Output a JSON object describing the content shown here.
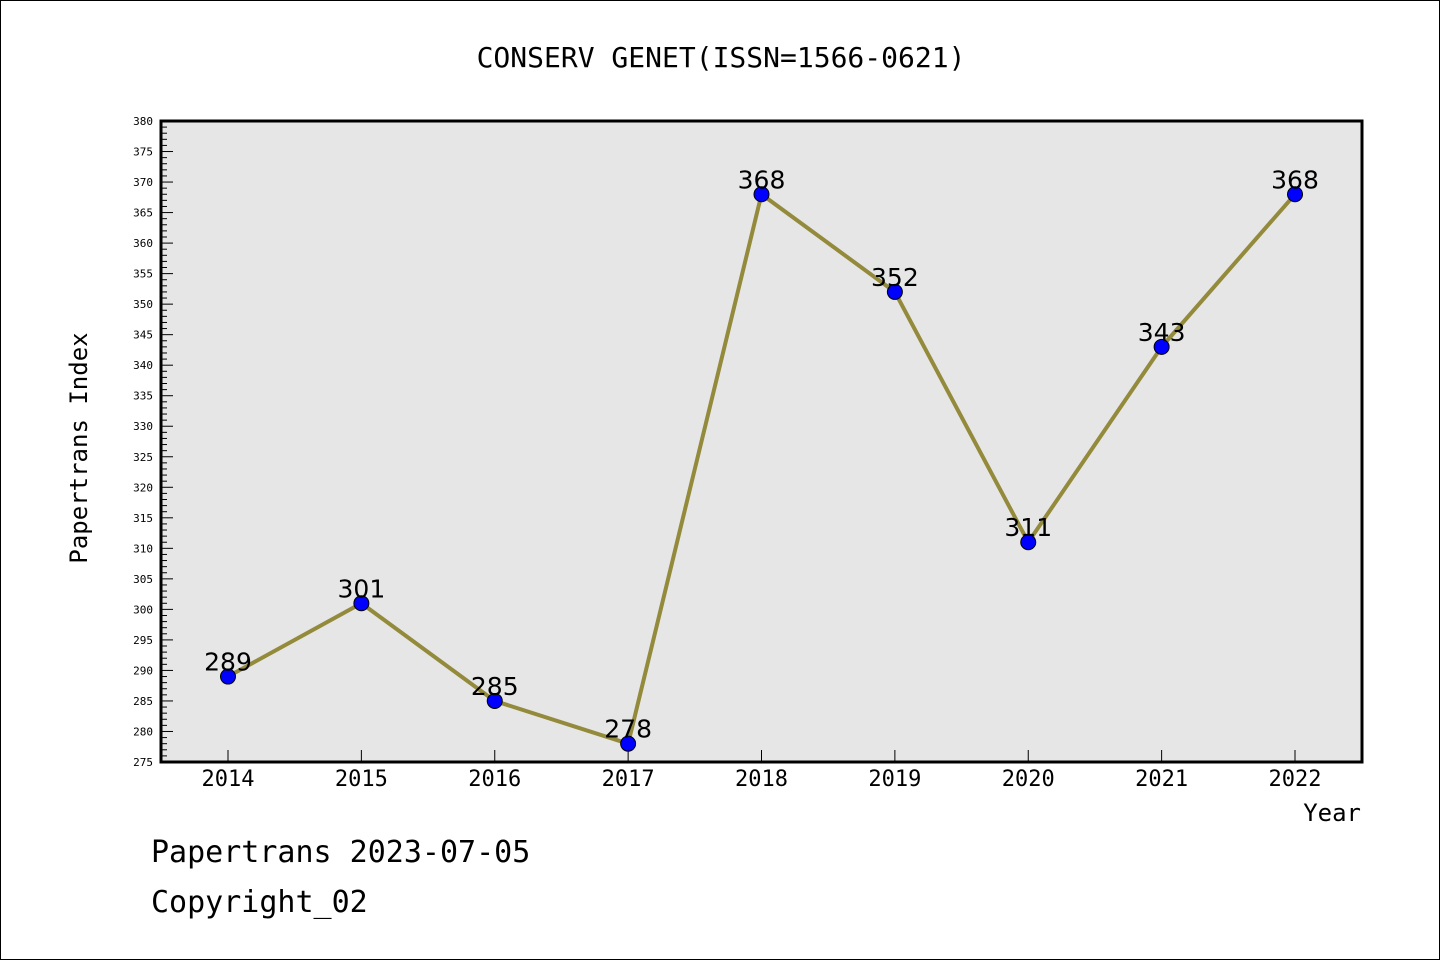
{
  "chart_data": {
    "type": "line",
    "title": "CONSERV GENET(ISSN=1566-0621)",
    "xlabel": "Year",
    "ylabel": "Papertrans Index",
    "categories": [
      "2014",
      "2015",
      "2016",
      "2017",
      "2018",
      "2019",
      "2020",
      "2021",
      "2022"
    ],
    "series": [
      {
        "values": [
          289,
          301,
          285,
          278,
          368,
          352,
          311,
          343,
          368
        ]
      }
    ],
    "data_labels": [
      "289",
      "301",
      "285",
      "278",
      "368",
      "352",
      "311",
      "343",
      "368"
    ],
    "ylim": [
      275,
      380
    ],
    "yticks": [
      "275",
      "280",
      "285",
      "290",
      "295",
      "300",
      "305",
      "310",
      "315",
      "320",
      "325",
      "330",
      "335",
      "340",
      "345",
      "350",
      "355",
      "360",
      "365",
      "370",
      "375",
      "380"
    ],
    "grid": false,
    "colors": {
      "plot_background": "#e6e6e6",
      "line": "#948a3c",
      "marker": "#0000ff"
    }
  },
  "footer": {
    "line1": "Papertrans 2023-07-05",
    "line2": "Copyright_02"
  }
}
